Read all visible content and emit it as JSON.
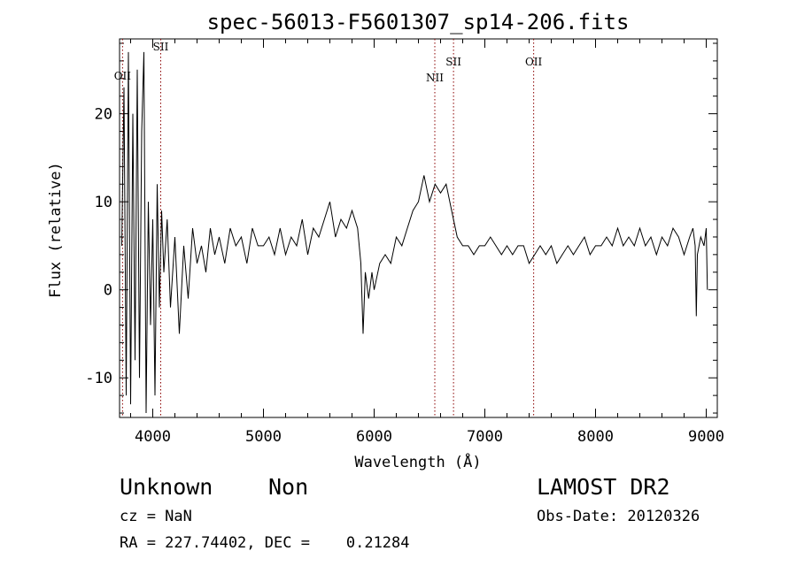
{
  "chart_data": {
    "type": "line",
    "title": "spec-56013-F5601307_sp14-206.fits",
    "xlabel": "Wavelength (Å)",
    "ylabel": "Flux (relative)",
    "xlim": [
      3700,
      9100
    ],
    "ylim": [
      -14.5,
      28.5
    ],
    "xticks": [
      4000,
      5000,
      6000,
      7000,
      8000,
      9000
    ],
    "yticks": [
      -10,
      0,
      10,
      20
    ],
    "grid": false,
    "line_color": "#000000",
    "marker_color": "#8b0000",
    "lines": [
      {
        "name": "OII",
        "wavelength": 3727
      },
      {
        "name": "SII",
        "wavelength": 4072
      },
      {
        "name": "NII",
        "wavelength": 6548
      },
      {
        "name": "SII",
        "wavelength": 6717
      },
      {
        "name": "OII",
        "wavelength": 7441
      }
    ],
    "series": [
      {
        "points": [
          [
            3720,
            5
          ],
          [
            3740,
            23
          ],
          [
            3760,
            -12
          ],
          [
            3780,
            27
          ],
          [
            3800,
            -13
          ],
          [
            3820,
            20
          ],
          [
            3840,
            -8
          ],
          [
            3860,
            25
          ],
          [
            3880,
            -10
          ],
          [
            3900,
            18
          ],
          [
            3920,
            27
          ],
          [
            3940,
            -14
          ],
          [
            3960,
            10
          ],
          [
            3980,
            -4
          ],
          [
            4000,
            8
          ],
          [
            4020,
            -12
          ],
          [
            4040,
            12
          ],
          [
            4060,
            -2
          ],
          [
            4080,
            9
          ],
          [
            4100,
            2
          ],
          [
            4130,
            8
          ],
          [
            4160,
            -2
          ],
          [
            4200,
            6
          ],
          [
            4240,
            -5
          ],
          [
            4280,
            5
          ],
          [
            4320,
            -1
          ],
          [
            4360,
            7
          ],
          [
            4400,
            3
          ],
          [
            4440,
            5
          ],
          [
            4480,
            2
          ],
          [
            4520,
            7
          ],
          [
            4560,
            4
          ],
          [
            4600,
            6
          ],
          [
            4650,
            3
          ],
          [
            4700,
            7
          ],
          [
            4750,
            5
          ],
          [
            4800,
            6
          ],
          [
            4850,
            3
          ],
          [
            4900,
            7
          ],
          [
            4950,
            5
          ],
          [
            5000,
            5
          ],
          [
            5050,
            6
          ],
          [
            5100,
            4
          ],
          [
            5150,
            7
          ],
          [
            5200,
            4
          ],
          [
            5250,
            6
          ],
          [
            5300,
            5
          ],
          [
            5350,
            8
          ],
          [
            5400,
            4
          ],
          [
            5450,
            7
          ],
          [
            5500,
            6
          ],
          [
            5550,
            8
          ],
          [
            5600,
            10
          ],
          [
            5650,
            6
          ],
          [
            5700,
            8
          ],
          [
            5750,
            7
          ],
          [
            5800,
            9
          ],
          [
            5850,
            7
          ],
          [
            5880,
            3
          ],
          [
            5900,
            -5
          ],
          [
            5920,
            2
          ],
          [
            5950,
            -1
          ],
          [
            5980,
            2
          ],
          [
            6000,
            0
          ],
          [
            6050,
            3
          ],
          [
            6100,
            4
          ],
          [
            6150,
            3
          ],
          [
            6200,
            6
          ],
          [
            6250,
            5
          ],
          [
            6300,
            7
          ],
          [
            6350,
            9
          ],
          [
            6400,
            10
          ],
          [
            6450,
            13
          ],
          [
            6500,
            10
          ],
          [
            6550,
            12
          ],
          [
            6600,
            11
          ],
          [
            6650,
            12
          ],
          [
            6700,
            9
          ],
          [
            6750,
            6
          ],
          [
            6800,
            5
          ],
          [
            6850,
            5
          ],
          [
            6900,
            4
          ],
          [
            6950,
            5
          ],
          [
            7000,
            5
          ],
          [
            7050,
            6
          ],
          [
            7100,
            5
          ],
          [
            7150,
            4
          ],
          [
            7200,
            5
          ],
          [
            7250,
            4
          ],
          [
            7300,
            5
          ],
          [
            7350,
            5
          ],
          [
            7400,
            3
          ],
          [
            7450,
            4
          ],
          [
            7500,
            5
          ],
          [
            7550,
            4
          ],
          [
            7600,
            5
          ],
          [
            7650,
            3
          ],
          [
            7700,
            4
          ],
          [
            7750,
            5
          ],
          [
            7800,
            4
          ],
          [
            7850,
            5
          ],
          [
            7900,
            6
          ],
          [
            7950,
            4
          ],
          [
            8000,
            5
          ],
          [
            8050,
            5
          ],
          [
            8100,
            6
          ],
          [
            8150,
            5
          ],
          [
            8200,
            7
          ],
          [
            8250,
            5
          ],
          [
            8300,
            6
          ],
          [
            8350,
            5
          ],
          [
            8400,
            7
          ],
          [
            8450,
            5
          ],
          [
            8500,
            6
          ],
          [
            8550,
            4
          ],
          [
            8600,
            6
          ],
          [
            8650,
            5
          ],
          [
            8700,
            7
          ],
          [
            8750,
            6
          ],
          [
            8800,
            4
          ],
          [
            8850,
            6
          ],
          [
            8880,
            7
          ],
          [
            8900,
            5
          ],
          [
            8910,
            -3
          ],
          [
            8920,
            4
          ],
          [
            8950,
            6
          ],
          [
            8980,
            5
          ],
          [
            9000,
            7
          ],
          [
            9010,
            0
          ]
        ]
      }
    ]
  },
  "info": {
    "class": "Unknown",
    "subclass": "Non",
    "survey": "LAMOST DR2",
    "cz": "cz = NaN",
    "obs_date": "Obs-Date: 20120326",
    "radec": "RA = 227.74402, DEC =    0.21284"
  }
}
